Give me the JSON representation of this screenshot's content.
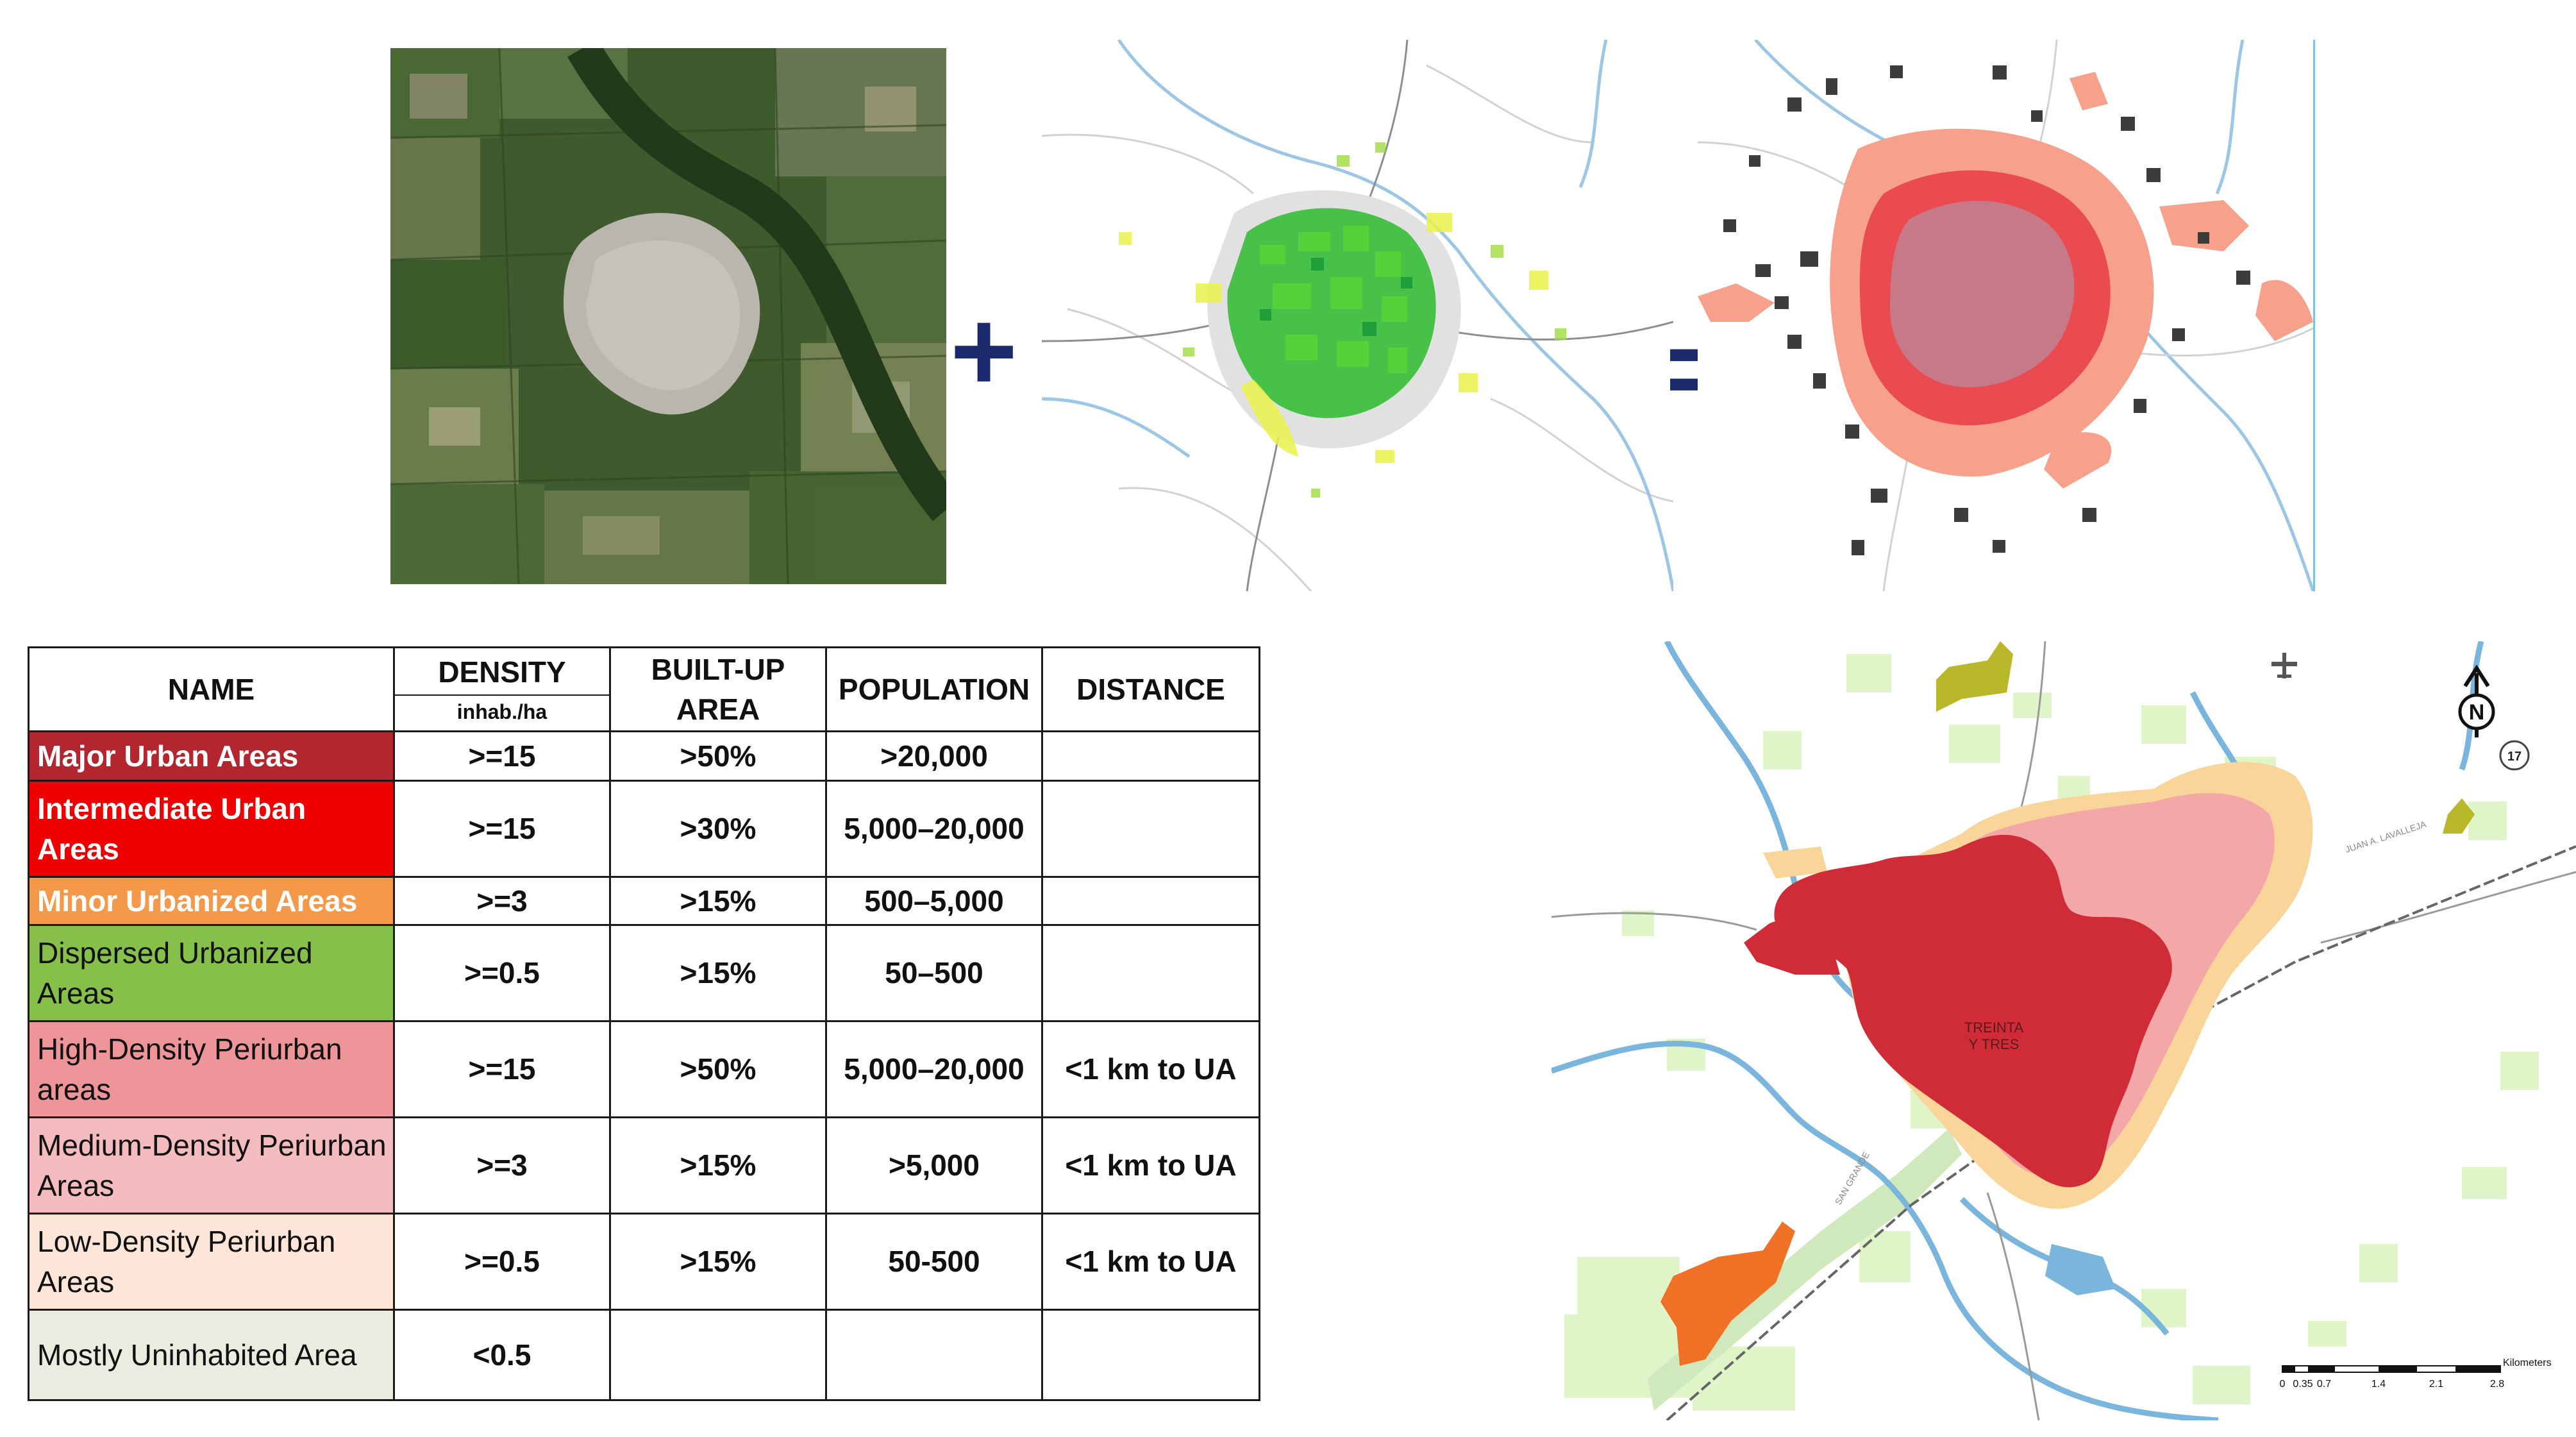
{
  "workflow": {
    "operator_plus": "+",
    "operator_equals": "="
  },
  "table": {
    "headers": {
      "name": "NAME",
      "density": "DENSITY",
      "density_unit": "inhab./ha",
      "builtup": "BUILT-UP AREA",
      "population": "POPULATION",
      "distance": "DISTANCE"
    },
    "rows": [
      {
        "name": "Major Urban Areas",
        "density": ">=15",
        "builtup": ">50%",
        "population": ">20,000",
        "distance": "",
        "color": "#b3262f",
        "text_color": "#ffffff"
      },
      {
        "name": "Intermediate Urban Areas",
        "density": ">=15",
        "builtup": ">30%",
        "population": "5,000–20,000",
        "distance": "",
        "color": "#ee0000",
        "text_color": "#ffffff"
      },
      {
        "name": "Minor Urbanized Areas",
        "density": ">=3",
        "builtup": ">15%",
        "population": "500–5,000",
        "distance": "",
        "color": "#f4994a",
        "text_color": "#ffffff"
      },
      {
        "name": "Dispersed Urbanized Areas",
        "density": ">=0.5",
        "builtup": ">15%",
        "population": "50–500",
        "distance": "",
        "color": "#86bf4a",
        "text_color": "#111111"
      },
      {
        "name": "High-Density Periurban areas",
        "density": ">=15",
        "builtup": ">50%",
        "population": "5,000–20,000",
        "distance": "<1 km to UA",
        "color": "#ed9598",
        "text_color": "#111111"
      },
      {
        "name": "Medium-Density Periurban Areas",
        "density": ">=3",
        "builtup": ">15%",
        "population": ">5,000",
        "distance": "<1 km to UA",
        "color": "#f5bcc0",
        "text_color": "#111111"
      },
      {
        "name": "Low-Density Periurban Areas",
        "density": ">=0.5",
        "builtup": ">15%",
        "population": "50-500",
        "distance": "<1 km to UA",
        "color": "#fde6d8",
        "text_color": "#111111"
      },
      {
        "name": "Mostly Uninhabited Area",
        "density": "<0.5",
        "builtup": "",
        "population": "",
        "distance": "",
        "color": "#ebecdf",
        "text_color": "#111111"
      }
    ]
  },
  "map": {
    "city_label_line1": "TREINTA",
    "city_label_line2": "Y TRES",
    "road_label": "17",
    "north_label": "N",
    "street_label_1": "JUAN A. LAVALLEJA",
    "street_label_2": "SAN GRANDE",
    "scale_unit": "Kilometers",
    "scale_ticks": [
      "0",
      "0.35",
      "0.7",
      "1.4",
      "2.1",
      "2.8"
    ]
  }
}
